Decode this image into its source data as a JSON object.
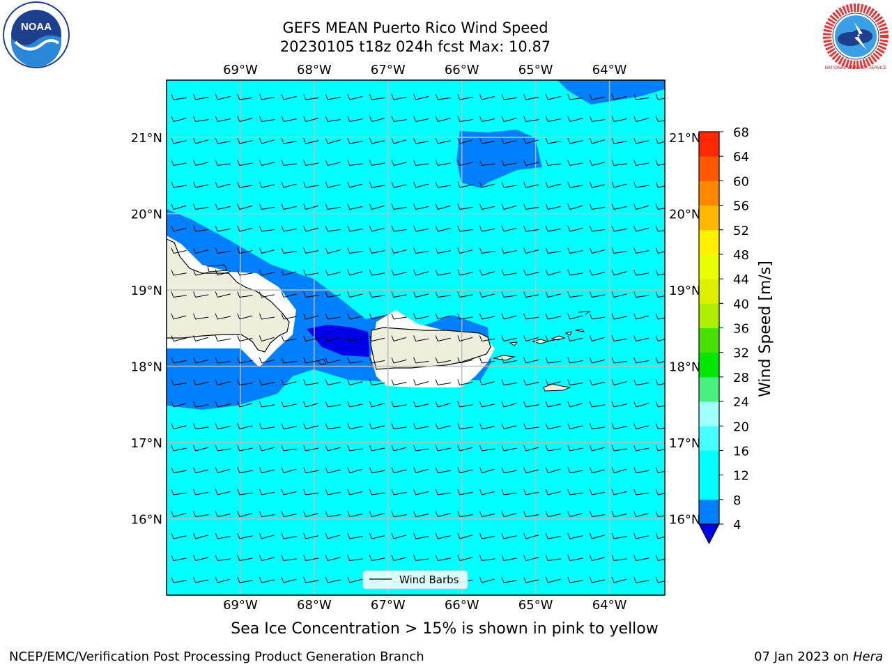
{
  "header": {
    "title_line1": "GEFS MEAN Puerto Rico Wind Speed",
    "title_line2": "20230105 t18z 024h fcst   Max: 10.87"
  },
  "logos": {
    "noaa": {
      "text": "NOAA",
      "icon": "noaa-logo-icon"
    },
    "nws": {
      "text": "NATIONAL WEATHER SERVICE",
      "icon": "nws-logo-icon"
    }
  },
  "map": {
    "lon_range": [
      -70,
      -63.25
    ],
    "lat_range": [
      15.0,
      21.75
    ],
    "lon_labels": [
      "69°W",
      "68°W",
      "67°W",
      "66°W",
      "65°W",
      "64°W"
    ],
    "lat_labels": [
      "16°N",
      "17°N",
      "18°N",
      "19°N",
      "20°N",
      "21°N"
    ],
    "grid": true,
    "legend": {
      "label": "Wind Barbs",
      "placement": "bottom-center"
    },
    "colors": {
      "ocean_main": "#00FFFF",
      "mid_speed": "#0080FF",
      "low_speed": "#0000E8",
      "land": "#EEEEDC",
      "grid": "#BBBBBB"
    }
  },
  "colorbar": {
    "label": "Wind Speed [m/s]",
    "ticks": [
      "4",
      "8",
      "12",
      "16",
      "20",
      "24",
      "28",
      "32",
      "36",
      "40",
      "44",
      "48",
      "52",
      "56",
      "60",
      "64",
      "68"
    ],
    "colors": [
      "#0080FF",
      "#00FFFF",
      "#00FFFF",
      "#48FFFF",
      "#A0FFFF",
      "#48F080",
      "#00E800",
      "#48E000",
      "#B0EE00",
      "#DCF000",
      "#E8FF00",
      "#FFF000",
      "#FFB800",
      "#FF8800",
      "#FF5800",
      "#FF2800",
      "#FF0000"
    ],
    "under_color": "#0000E8"
  },
  "caption": "Sea Ice Concentration > 15% is shown in pink to yellow",
  "footer": {
    "left": "NCEP/EMC/Verification Post Processing Product Generation Branch",
    "right_date": "07 Jan 2023 on ",
    "right_host": "Hera"
  }
}
